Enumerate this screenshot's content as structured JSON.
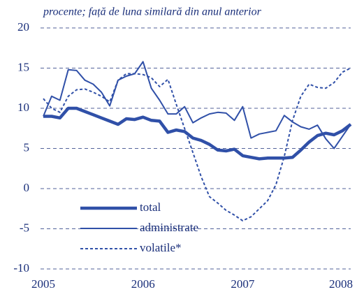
{
  "chart_data": {
    "type": "line",
    "title": "procente; față de luna similară din anul anterior",
    "categories": [
      "2005",
      null,
      null,
      null,
      null,
      null,
      null,
      null,
      null,
      null,
      null,
      null,
      "2006",
      null,
      null,
      null,
      null,
      null,
      null,
      null,
      null,
      null,
      null,
      null,
      "2007",
      null,
      null,
      null,
      null,
      null,
      null,
      null,
      null,
      null,
      null,
      null,
      "2008",
      null
    ],
    "series": [
      {
        "name": "total",
        "color": "#3050a8",
        "width": 4.5,
        "style": "solid",
        "values": [
          9,
          9,
          8.8,
          10,
          10,
          9.6,
          9.2,
          8.8,
          8.4,
          8.0,
          8.7,
          8.6,
          8.9,
          8.5,
          8.4,
          7.0,
          7.3,
          7.1,
          6.3,
          6.0,
          5.5,
          4.8,
          4.7,
          4.9,
          4.1,
          3.9,
          3.7,
          3.8,
          3.8,
          3.8,
          3.9,
          4.8,
          5.8,
          6.6,
          6.9,
          6.7,
          7.2,
          8.0
        ]
      },
      {
        "name": "administrate",
        "color": "#3050a8",
        "width": 2,
        "style": "solid",
        "values": [
          9,
          11.5,
          11,
          14.8,
          14.7,
          13.5,
          13,
          12,
          10.3,
          13.5,
          14,
          14.3,
          15.8,
          12.5,
          11,
          9.3,
          9.3,
          10.2,
          8.2,
          8.8,
          9.3,
          9.5,
          9.4,
          8.5,
          10.2,
          6.3,
          6.8,
          7.0,
          7.2,
          9.1,
          8.3,
          7.7,
          7.4,
          7.9,
          6.2,
          5.0,
          6.5,
          8.0
        ]
      },
      {
        "name": "volatile*",
        "color": "#3050a8",
        "width": 2,
        "style": "dashed",
        "values": [
          11.2,
          10,
          9.5,
          11.5,
          12.3,
          12.4,
          12,
          11.5,
          10.8,
          13.5,
          14.3,
          14.3,
          14.2,
          13.8,
          12.7,
          13.6,
          10.5,
          7.5,
          4.5,
          1.5,
          -1,
          -1.8,
          -2.7,
          -3.3,
          -4,
          -3.5,
          -2.5,
          -1.5,
          0.5,
          4,
          8.5,
          11.5,
          13,
          12.6,
          12.5,
          13.2,
          14.5,
          15
        ]
      }
    ],
    "ylim": [
      -10,
      20
    ],
    "yticks": [
      -10,
      -5,
      0,
      5,
      10,
      15,
      20
    ],
    "grid": true
  }
}
